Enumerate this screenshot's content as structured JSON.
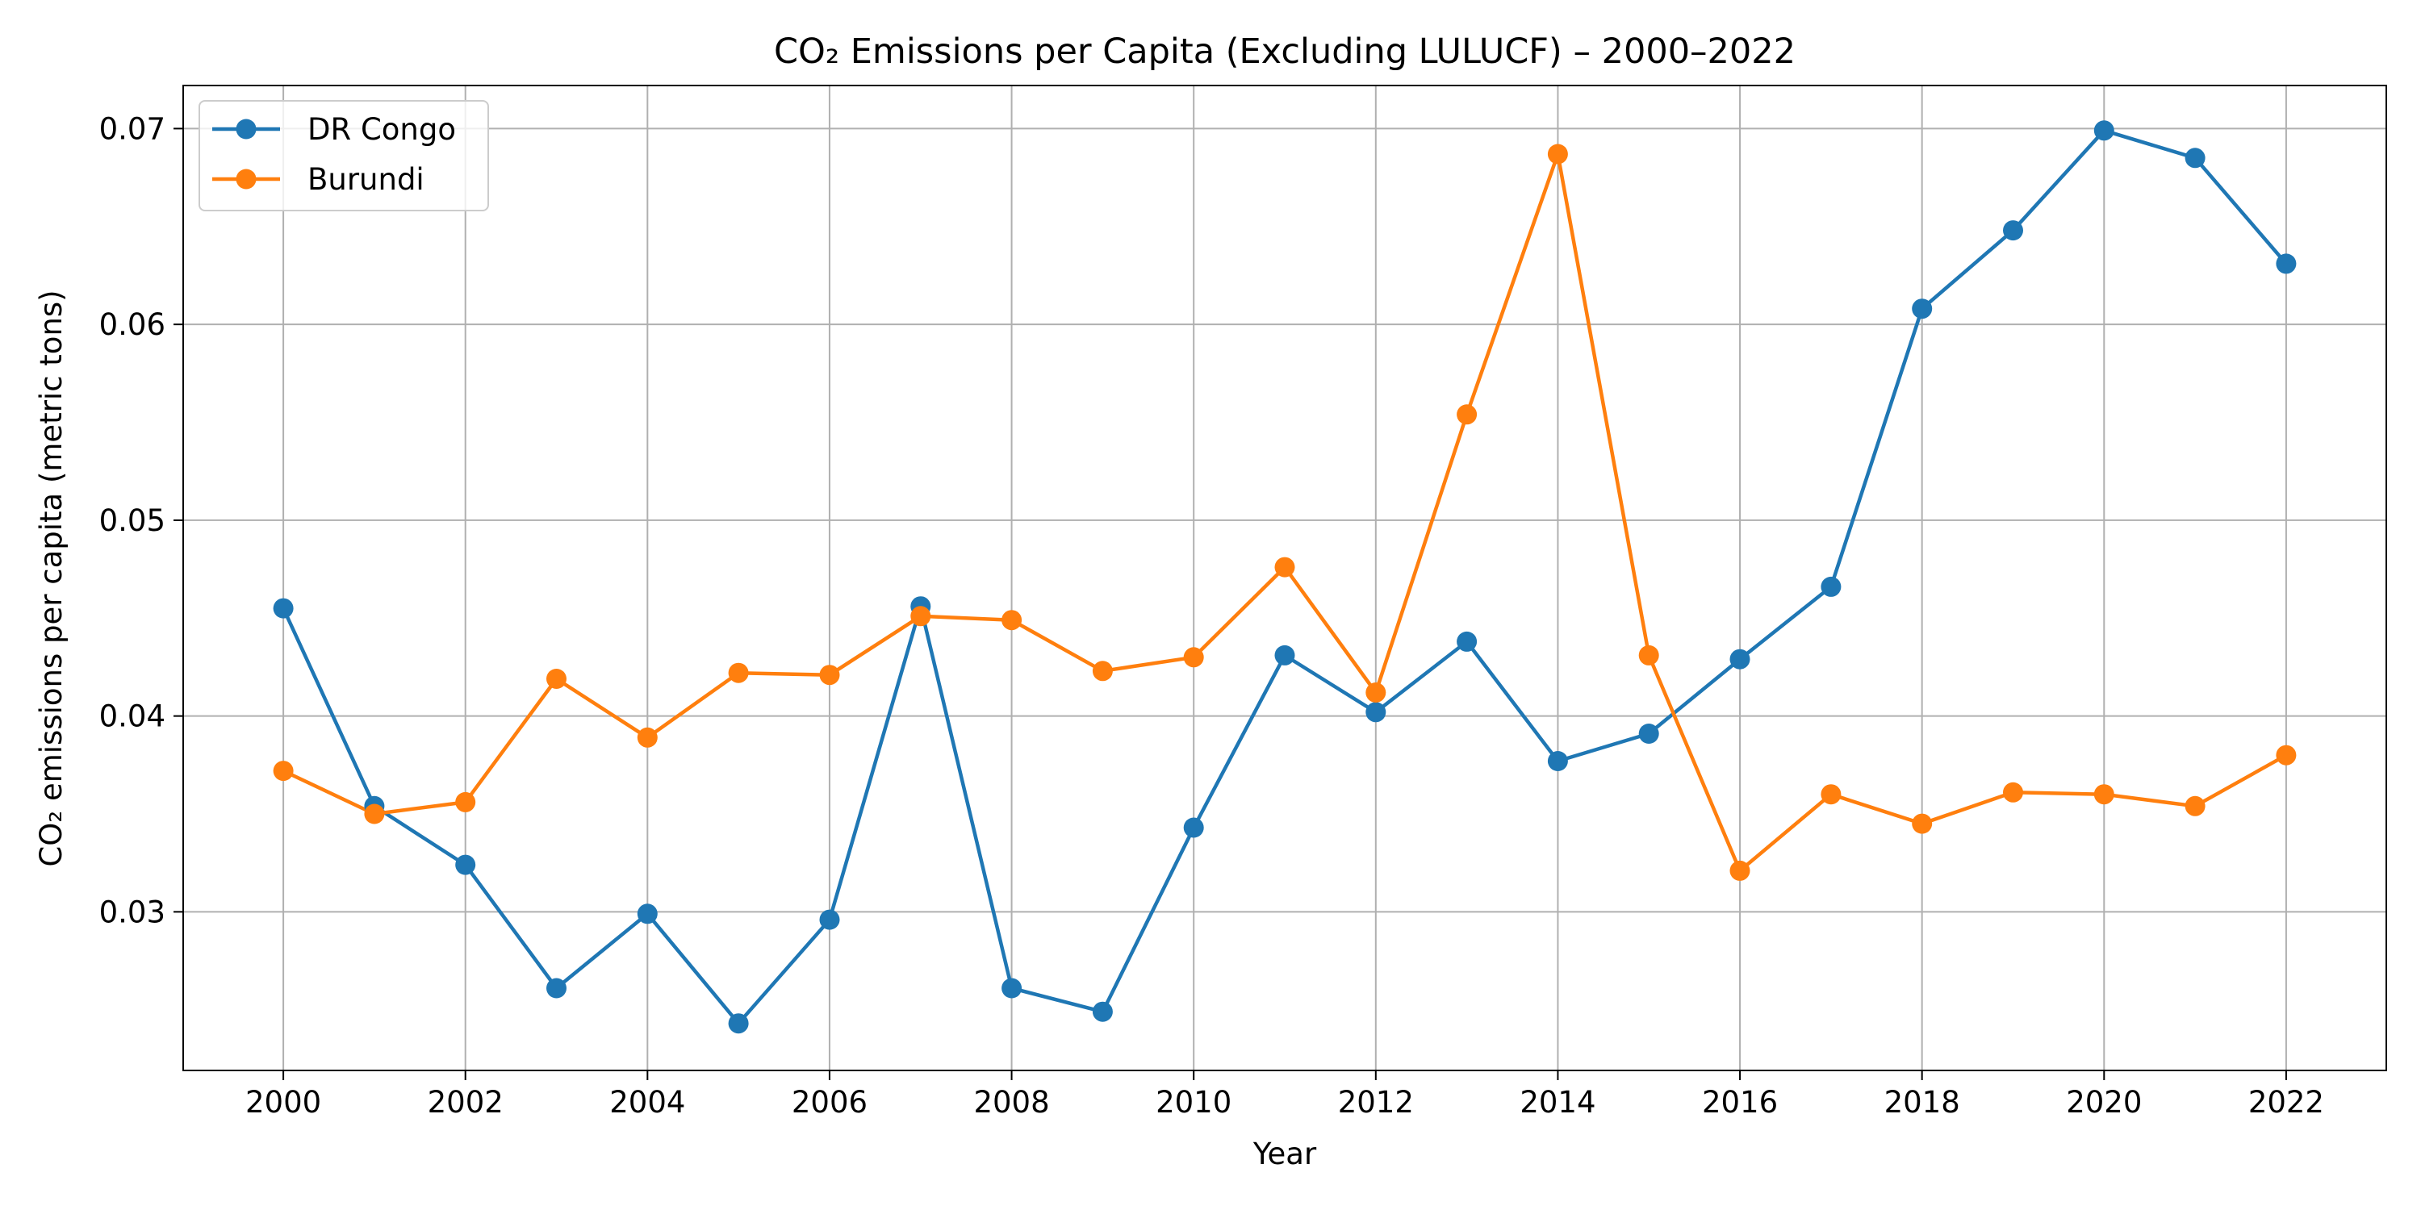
{
  "chart_data": {
    "type": "line",
    "title": "CO₂ Emissions per Capita (Excluding LULUCF) – 2000–2022",
    "xlabel": "Year",
    "ylabel": "CO₂ emissions per capita (metric tons)",
    "x": [
      2000,
      2001,
      2002,
      2003,
      2004,
      2005,
      2006,
      2007,
      2008,
      2009,
      2010,
      2011,
      2012,
      2013,
      2014,
      2015,
      2016,
      2017,
      2018,
      2019,
      2020,
      2021,
      2022
    ],
    "xticks": [
      2000,
      2002,
      2004,
      2006,
      2008,
      2010,
      2012,
      2014,
      2016,
      2018,
      2020,
      2022
    ],
    "xlim": [
      1998.9,
      2023.1
    ],
    "yticks": [
      0.03,
      0.04,
      0.05,
      0.06,
      0.07
    ],
    "ytick_labels": [
      "0.03",
      "0.04",
      "0.05",
      "0.06",
      "0.07"
    ],
    "ylim": [
      0.0219,
      0.0722
    ],
    "grid": true,
    "legend_position": "top-left",
    "series": [
      {
        "name": "DR Congo",
        "color": "#1f77b4",
        "values": [
          0.0455,
          0.0354,
          0.0324,
          0.0261,
          0.0299,
          0.0243,
          0.0296,
          0.0456,
          0.0261,
          0.0249,
          0.0343,
          0.0431,
          0.0402,
          0.0438,
          0.0377,
          0.0391,
          0.0429,
          0.0466,
          0.0608,
          0.0648,
          0.0699,
          0.0685,
          0.0631
        ]
      },
      {
        "name": "Burundi",
        "color": "#ff7f0e",
        "values": [
          0.0372,
          0.035,
          0.0356,
          0.0419,
          0.0389,
          0.0422,
          0.0421,
          0.0451,
          0.0449,
          0.0423,
          0.043,
          0.0476,
          0.0412,
          0.0554,
          0.0687,
          0.0431,
          0.0321,
          0.036,
          0.0345,
          0.0361,
          0.036,
          0.0354,
          0.038
        ]
      }
    ]
  }
}
